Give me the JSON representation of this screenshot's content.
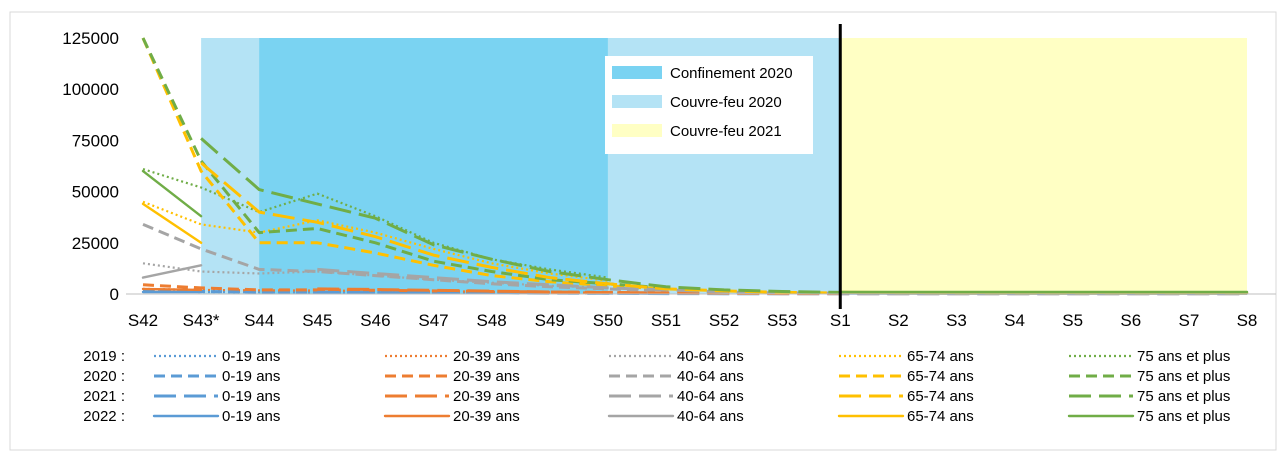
{
  "chart_data": {
    "type": "line",
    "title": "",
    "xlabel": "",
    "ylabel": "",
    "categories": [
      "S42",
      "S43*",
      "S44",
      "S45",
      "S46",
      "S47",
      "S48",
      "S49",
      "S50",
      "S51",
      "S52",
      "S53",
      "S1",
      "S2",
      "S3",
      "S4",
      "S5",
      "S6",
      "S7",
      "S8"
    ],
    "ylim": [
      0,
      125000
    ],
    "yticks": [
      0,
      25000,
      50000,
      75000,
      100000,
      125000
    ],
    "grid": false,
    "periods": [
      {
        "label": "Confinement 2020",
        "color": "#7ad3f2",
        "from": "S44",
        "to": "S50"
      },
      {
        "label": "Couvre-feu 2020",
        "color": "#b4e3f5",
        "from": "S43*",
        "to": "S1"
      },
      {
        "label": "Couvre-feu 2021",
        "color": "#ffffc4",
        "from": "S1",
        "to": "S8"
      }
    ],
    "divider_at": "S1",
    "group_colors": {
      "0-19 ans": "#5b9bd5",
      "20-39 ans": "#ed7d31",
      "40-64 ans": "#a5a5a5",
      "65-74 ans": "#ffc000",
      "75 ans et plus": "#70ad47"
    },
    "age_groups": [
      "0-19 ans",
      "20-39 ans",
      "40-64 ans",
      "65-74 ans",
      "75 ans et plus"
    ],
    "legend_rows": [
      {
        "year_label": "2019 :",
        "style": "dotted"
      },
      {
        "year_label": "2020 :",
        "style": "short-dash"
      },
      {
        "year_label": "2021 :",
        "style": "long-dash"
      },
      {
        "year_label": "2022 :",
        "style": "solid"
      }
    ],
    "series": [
      {
        "year": "2019",
        "group": "0-19 ans",
        "values": [
          1200,
          1000,
          900,
          800,
          700,
          600,
          500,
          400,
          300,
          null,
          null,
          null,
          null,
          null,
          null,
          null,
          null,
          null,
          null,
          null
        ]
      },
      {
        "year": "2019",
        "group": "20-39 ans",
        "values": [
          2500,
          2000,
          1800,
          1700,
          1500,
          1300,
          1100,
          900,
          700,
          null,
          null,
          null,
          null,
          null,
          null,
          null,
          null,
          null,
          null,
          null
        ]
      },
      {
        "year": "2019",
        "group": "40-64 ans",
        "values": [
          15000,
          11000,
          10000,
          11000,
          9000,
          7000,
          5500,
          4000,
          3000,
          null,
          null,
          null,
          null,
          null,
          null,
          null,
          null,
          null,
          null,
          null
        ]
      },
      {
        "year": "2019",
        "group": "65-74 ans",
        "values": [
          45000,
          34000,
          30000,
          36000,
          30000,
          22000,
          15000,
          10000,
          6500,
          null,
          null,
          null,
          null,
          null,
          null,
          null,
          null,
          null,
          null,
          null
        ]
      },
      {
        "year": "2019",
        "group": "75 ans et plus",
        "values": [
          61000,
          52000,
          40000,
          49000,
          38000,
          25000,
          17000,
          12000,
          8000,
          null,
          null,
          null,
          null,
          null,
          null,
          null,
          null,
          null,
          null,
          null
        ]
      },
      {
        "year": "2020",
        "group": "0-19 ans",
        "values": [
          1500,
          1200,
          1000,
          900,
          800,
          700,
          600,
          500,
          400,
          300,
          null,
          null,
          null,
          null,
          null,
          null,
          null,
          null,
          null,
          null
        ]
      },
      {
        "year": "2020",
        "group": "20-39 ans",
        "values": [
          4500,
          3000,
          2000,
          2000,
          1800,
          1500,
          1200,
          1000,
          800,
          500,
          null,
          null,
          null,
          null,
          null,
          null,
          null,
          null,
          null,
          null
        ]
      },
      {
        "year": "2020",
        "group": "40-64 ans",
        "values": [
          34000,
          22000,
          12000,
          11000,
          9000,
          7000,
          5000,
          3500,
          2500,
          1500,
          null,
          null,
          null,
          null,
          null,
          null,
          null,
          null,
          null,
          null
        ]
      },
      {
        "year": "2020",
        "group": "65-74 ans",
        "values": [
          125000,
          60000,
          25000,
          25000,
          20000,
          14000,
          9000,
          6000,
          4000,
          2500,
          null,
          null,
          null,
          null,
          null,
          null,
          null,
          null,
          null,
          null
        ]
      },
      {
        "year": "2020",
        "group": "75 ans et plus",
        "values": [
          125000,
          65000,
          30000,
          32000,
          25000,
          16000,
          11000,
          7000,
          5000,
          3000,
          null,
          null,
          null,
          null,
          null,
          null,
          null,
          null,
          null,
          null
        ]
      },
      {
        "year": "2021",
        "group": "0-19 ans",
        "values": [
          null,
          null,
          null,
          800,
          700,
          600,
          500,
          400,
          300,
          200,
          150,
          100,
          100,
          100,
          100,
          100,
          100,
          100,
          100,
          100
        ]
      },
      {
        "year": "2021",
        "group": "20-39 ans",
        "values": [
          null,
          null,
          null,
          2500,
          2200,
          1800,
          1400,
          1000,
          700,
          500,
          300,
          200,
          200,
          200,
          200,
          200,
          200,
          200,
          200,
          200
        ]
      },
      {
        "year": "2021",
        "group": "40-64 ans",
        "values": [
          null,
          null,
          null,
          12000,
          10000,
          8000,
          6000,
          4500,
          3000,
          2000,
          1000,
          500,
          400,
          300,
          300,
          300,
          300,
          300,
          300,
          300
        ]
      },
      {
        "year": "2021",
        "group": "65-74 ans",
        "values": [
          null,
          64000,
          40000,
          35000,
          28000,
          19000,
          13000,
          8000,
          5000,
          2500,
          1500,
          800,
          500,
          400,
          300,
          300,
          300,
          300,
          300,
          300
        ]
      },
      {
        "year": "2021",
        "group": "75 ans et plus",
        "values": [
          null,
          76000,
          51000,
          44000,
          37000,
          24000,
          17000,
          11000,
          7000,
          3500,
          2000,
          1200,
          800,
          600,
          500,
          500,
          500,
          500,
          500,
          500
        ]
      },
      {
        "year": "2022",
        "group": "0-19 ans",
        "values": [
          1000,
          1000,
          null,
          null,
          null,
          null,
          null,
          null,
          null,
          null,
          null,
          null,
          200,
          200,
          200,
          200,
          200,
          200,
          200,
          200
        ]
      },
      {
        "year": "2022",
        "group": "20-39 ans",
        "values": [
          2500,
          2000,
          null,
          null,
          null,
          null,
          null,
          null,
          null,
          null,
          null,
          null,
          500,
          400,
          400,
          400,
          400,
          400,
          400,
          400
        ]
      },
      {
        "year": "2022",
        "group": "40-64 ans",
        "values": [
          8000,
          14000,
          null,
          null,
          null,
          null,
          null,
          null,
          null,
          null,
          null,
          null,
          800,
          700,
          700,
          700,
          700,
          700,
          700,
          700
        ]
      },
      {
        "year": "2022",
        "group": "65-74 ans",
        "values": [
          44000,
          25000,
          null,
          null,
          null,
          null,
          null,
          null,
          null,
          null,
          null,
          null,
          1000,
          900,
          900,
          900,
          900,
          900,
          900,
          900
        ]
      },
      {
        "year": "2022",
        "group": "75 ans et plus",
        "values": [
          60000,
          38000,
          null,
          null,
          null,
          null,
          null,
          null,
          null,
          null,
          null,
          null,
          1000,
          1000,
          1000,
          1000,
          1000,
          1000,
          1000,
          1000
        ]
      }
    ]
  }
}
